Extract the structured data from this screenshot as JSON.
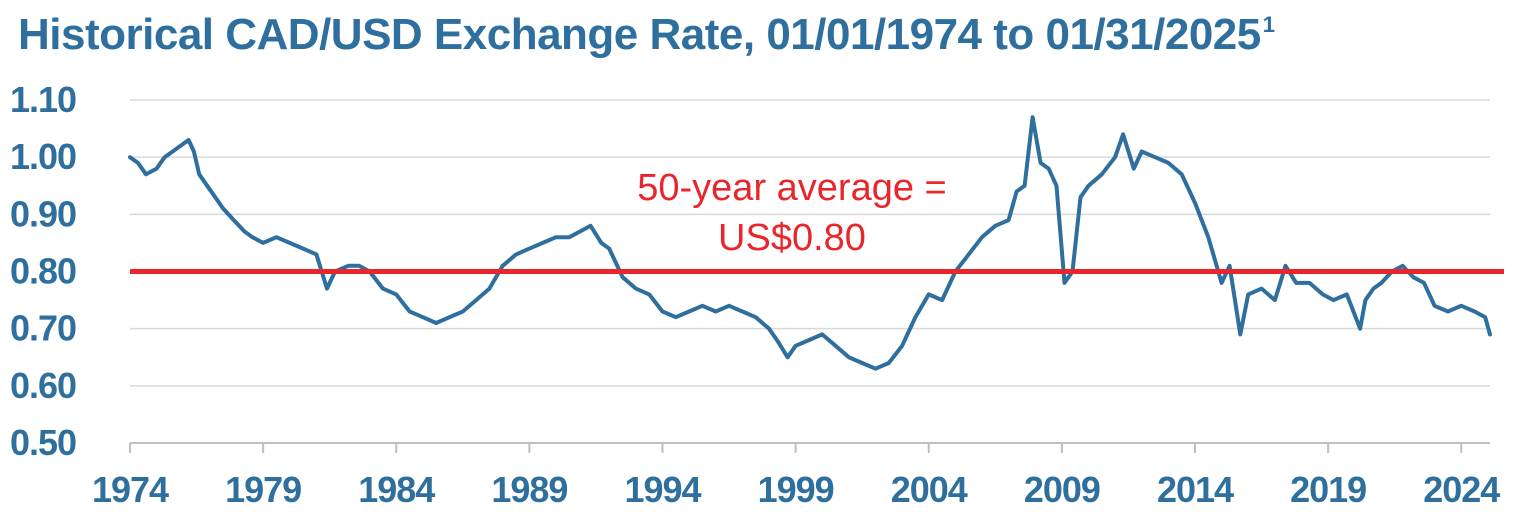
{
  "title": {
    "text": "Historical CAD/USD Exchange Rate, 01/01/1974 to 01/31/2025",
    "footnote_marker": "1"
  },
  "colors": {
    "title": "#2e6f9e",
    "series": "#2e6f9e",
    "average_line": "#e8262b",
    "gridline": "#d9d9d9",
    "axis": "#bfbfbf"
  },
  "chart_data": {
    "type": "line",
    "title": "Historical CAD/USD Exchange Rate, 01/01/1974 to 01/31/2025",
    "xlabel": "",
    "ylabel": "",
    "xlim": [
      1974.0,
      2025.08
    ],
    "ylim": [
      0.5,
      1.1
    ],
    "grid": true,
    "legend": "none",
    "y_ticks": [
      "1.10",
      "1.00",
      "0.90",
      "0.80",
      "0.70",
      "0.60",
      "0.50"
    ],
    "x_ticks": [
      "1974",
      "1979",
      "1984",
      "1989",
      "1994",
      "1999",
      "2004",
      "2009",
      "2014",
      "2019",
      "2024"
    ],
    "series": [
      {
        "x": [
          1974.0,
          1974.3,
          1974.6,
          1975.0,
          1975.3,
          1975.6,
          1975.9,
          1976.2,
          1976.4,
          1976.6,
          1976.9,
          1977.2,
          1977.5,
          1977.9,
          1978.3,
          1978.6,
          1979.0,
          1979.5,
          1980.0,
          1980.5,
          1981.0,
          1981.2,
          1981.4,
          1981.7,
          1982.2,
          1982.6,
          1983.0,
          1983.5,
          1984.0,
          1984.5,
          1985.0,
          1985.5,
          1986.0,
          1986.5,
          1987.0,
          1987.5,
          1988.0,
          1988.5,
          1989.0,
          1989.5,
          1990.0,
          1990.5,
          1990.9,
          1991.3,
          1991.7,
          1992.0,
          1992.5,
          1993.0,
          1993.5,
          1994.0,
          1994.5,
          1995.0,
          1995.5,
          1996.0,
          1996.5,
          1997.0,
          1997.5,
          1998.0,
          1998.3,
          1998.7,
          1999.0,
          1999.5,
          2000.0,
          2000.5,
          2001.0,
          2001.5,
          2002.0,
          2002.5,
          2003.0,
          2003.5,
          2004.0,
          2004.5,
          2005.0,
          2005.5,
          2006.0,
          2006.5,
          2007.0,
          2007.3,
          2007.6,
          2007.9,
          2008.2,
          2008.5,
          2008.8,
          2009.1,
          2009.4,
          2009.7,
          2010.0,
          2010.5,
          2011.0,
          2011.3,
          2011.7,
          2012.0,
          2012.5,
          2013.0,
          2013.5,
          2014.0,
          2014.5,
          2015.0,
          2015.3,
          2015.7,
          2016.0,
          2016.5,
          2017.0,
          2017.4,
          2017.8,
          2018.3,
          2018.8,
          2019.2,
          2019.7,
          2020.2,
          2020.4,
          2020.7,
          2021.0,
          2021.4,
          2021.8,
          2022.2,
          2022.6,
          2023.0,
          2023.5,
          2024.0,
          2024.5,
          2024.9,
          2025.08
        ],
        "y": [
          1.0,
          0.99,
          0.97,
          0.98,
          1.0,
          1.01,
          1.02,
          1.03,
          1.01,
          0.97,
          0.95,
          0.93,
          0.91,
          0.89,
          0.87,
          0.86,
          0.85,
          0.86,
          0.85,
          0.84,
          0.83,
          0.8,
          0.77,
          0.8,
          0.81,
          0.81,
          0.8,
          0.77,
          0.76,
          0.73,
          0.72,
          0.71,
          0.72,
          0.73,
          0.75,
          0.77,
          0.81,
          0.83,
          0.84,
          0.85,
          0.86,
          0.86,
          0.87,
          0.88,
          0.85,
          0.84,
          0.79,
          0.77,
          0.76,
          0.73,
          0.72,
          0.73,
          0.74,
          0.73,
          0.74,
          0.73,
          0.72,
          0.7,
          0.68,
          0.65,
          0.67,
          0.68,
          0.69,
          0.67,
          0.65,
          0.64,
          0.63,
          0.64,
          0.67,
          0.72,
          0.76,
          0.75,
          0.8,
          0.83,
          0.86,
          0.88,
          0.89,
          0.94,
          0.95,
          1.07,
          0.99,
          0.98,
          0.95,
          0.78,
          0.8,
          0.93,
          0.95,
          0.97,
          1.0,
          1.04,
          0.98,
          1.01,
          1.0,
          0.99,
          0.97,
          0.92,
          0.86,
          0.78,
          0.81,
          0.69,
          0.76,
          0.77,
          0.75,
          0.81,
          0.78,
          0.78,
          0.76,
          0.75,
          0.76,
          0.7,
          0.75,
          0.77,
          0.78,
          0.8,
          0.81,
          0.79,
          0.78,
          0.74,
          0.73,
          0.74,
          0.73,
          0.72,
          0.69
        ]
      }
    ],
    "reference_line": {
      "y": 0.8
    },
    "annotations": [
      "50-year average =",
      "US$0.80"
    ]
  }
}
